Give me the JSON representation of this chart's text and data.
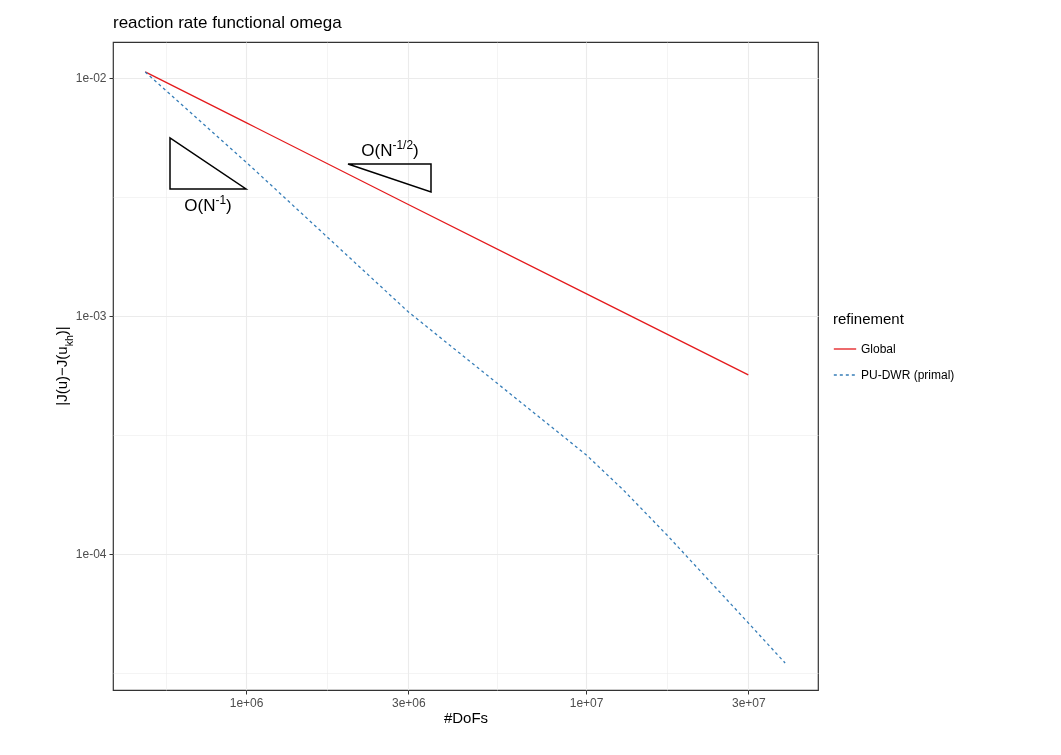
{
  "chart_data": {
    "type": "line",
    "title": "reaction rate functional omega",
    "xlabel": "#DoFs",
    "ylabel": "|J(u)−J(u$_{kh}$)|",
    "legend_title": "refinement",
    "log": "xy",
    "grid": true,
    "legend": "right",
    "marker": "none",
    "xlim": [
      406000,
      48100000
    ],
    "ylim": [
      2.68e-05,
      0.01416
    ],
    "xticks": [
      {
        "value": 580000,
        "label": null
      },
      {
        "value": 1000000,
        "label": "1e+06"
      },
      {
        "value": 1730000,
        "label": null
      },
      {
        "value": 3000000,
        "label": "3e+06"
      },
      {
        "value": 5480000,
        "label": null
      },
      {
        "value": 10000000,
        "label": "1e+07"
      },
      {
        "value": 17300000,
        "label": null
      },
      {
        "value": 30000000,
        "label": "3e+07"
      }
    ],
    "yticks": [
      {
        "value": 0.01,
        "label": "1e-02"
      },
      {
        "value": 0.003162,
        "label": null
      },
      {
        "value": 0.001,
        "label": "1e-03"
      },
      {
        "value": 0.0003162,
        "label": null
      },
      {
        "value": 0.0001,
        "label": "1e-04"
      },
      {
        "value": 3.162e-05,
        "label": null
      }
    ],
    "series": [
      {
        "name": "Global",
        "color": "#e41a1c",
        "line_style": "solid",
        "x": [
          505000,
          1000000,
          3000000,
          10000000,
          30000000
        ],
        "values": [
          0.0106,
          0.00649,
          0.00294,
          0.00124,
          0.000565
        ]
      },
      {
        "name": "PU-DWR (primal)",
        "color": "#377eb8",
        "line_style": "dotted",
        "x": [
          505000,
          1000000,
          3000000,
          10000000,
          12850000,
          17300000,
          30000000,
          38500000
        ],
        "values": [
          0.0106,
          0.00443,
          0.00104,
          0.000261,
          0.000186,
          0.00012,
          5.13e-05,
          3.48e-05
        ]
      }
    ],
    "annotations": [
      "O(N$^{-1}$)",
      "O(N$^{-1/2}$)"
    ]
  }
}
